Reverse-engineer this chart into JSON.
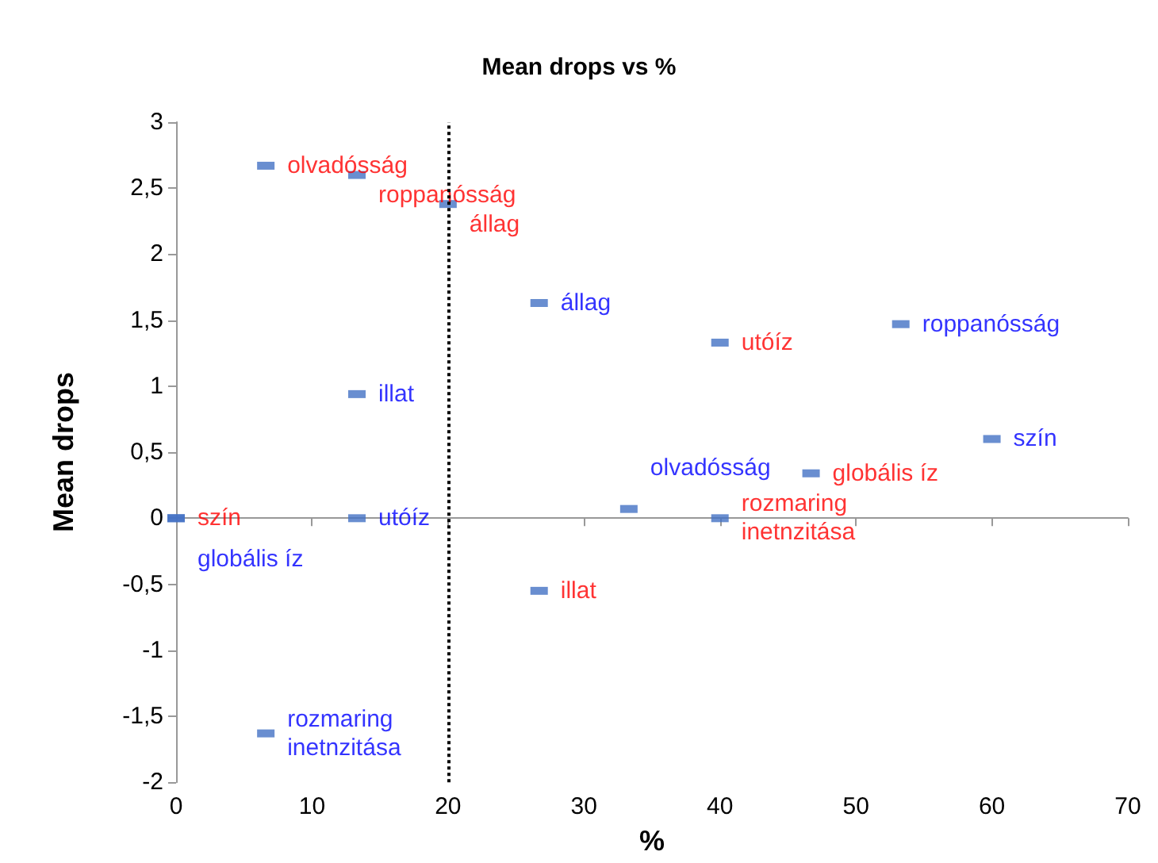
{
  "chart_data": {
    "type": "scatter",
    "title": "Mean drops vs %",
    "xlabel": "%",
    "ylabel": "Mean drops",
    "xlim": [
      0,
      70
    ],
    "xticks": [
      0,
      10,
      20,
      30,
      40,
      50,
      60,
      70
    ],
    "ylim": [
      -2,
      3
    ],
    "yticks": [
      -2,
      {
        "value": -1.5,
        "label": "-1,5"
      },
      -1,
      {
        "value": -0.5,
        "label": "-0,5"
      },
      0,
      {
        "value": 0.5,
        "label": "0,5"
      },
      1,
      {
        "value": 1.5,
        "label": "1,5"
      },
      2,
      {
        "value": 2.5,
        "label": "2,5"
      },
      3
    ],
    "grid": false,
    "marker": "square",
    "series": [
      {
        "color": "#4472c4",
        "x": [
          6.6,
          13.3,
          20,
          40,
          46.7,
          40,
          0,
          26.7
        ],
        "values": [
          2.67,
          2.6,
          2.38,
          1.33,
          0.34,
          0,
          0,
          -0.55
        ],
        "value_labels": [
          "olvadósság",
          "roppanósság",
          "állag",
          "utóíz",
          "globális íz",
          "rozmaring inetnzitása",
          "szín",
          "illat"
        ]
      },
      {
        "color": "#4472c4",
        "x": [
          26.7,
          53.3,
          13.3,
          60,
          33.3,
          0,
          13.3,
          6.6
        ],
        "values": [
          1.63,
          1.47,
          0.94,
          0.6,
          0.07,
          0,
          0,
          -1.63
        ],
        "value_labels": [
          "állag",
          "roppanósság",
          "illat",
          "szín",
          "olvadósság",
          "globális íz",
          "utóíz",
          "rozmaring inetnzitása"
        ]
      }
    ],
    "ref_lines": [
      {
        "axis": "x",
        "value": 20,
        "color": "#000000",
        "line_style": "dotted"
      }
    ]
  }
}
